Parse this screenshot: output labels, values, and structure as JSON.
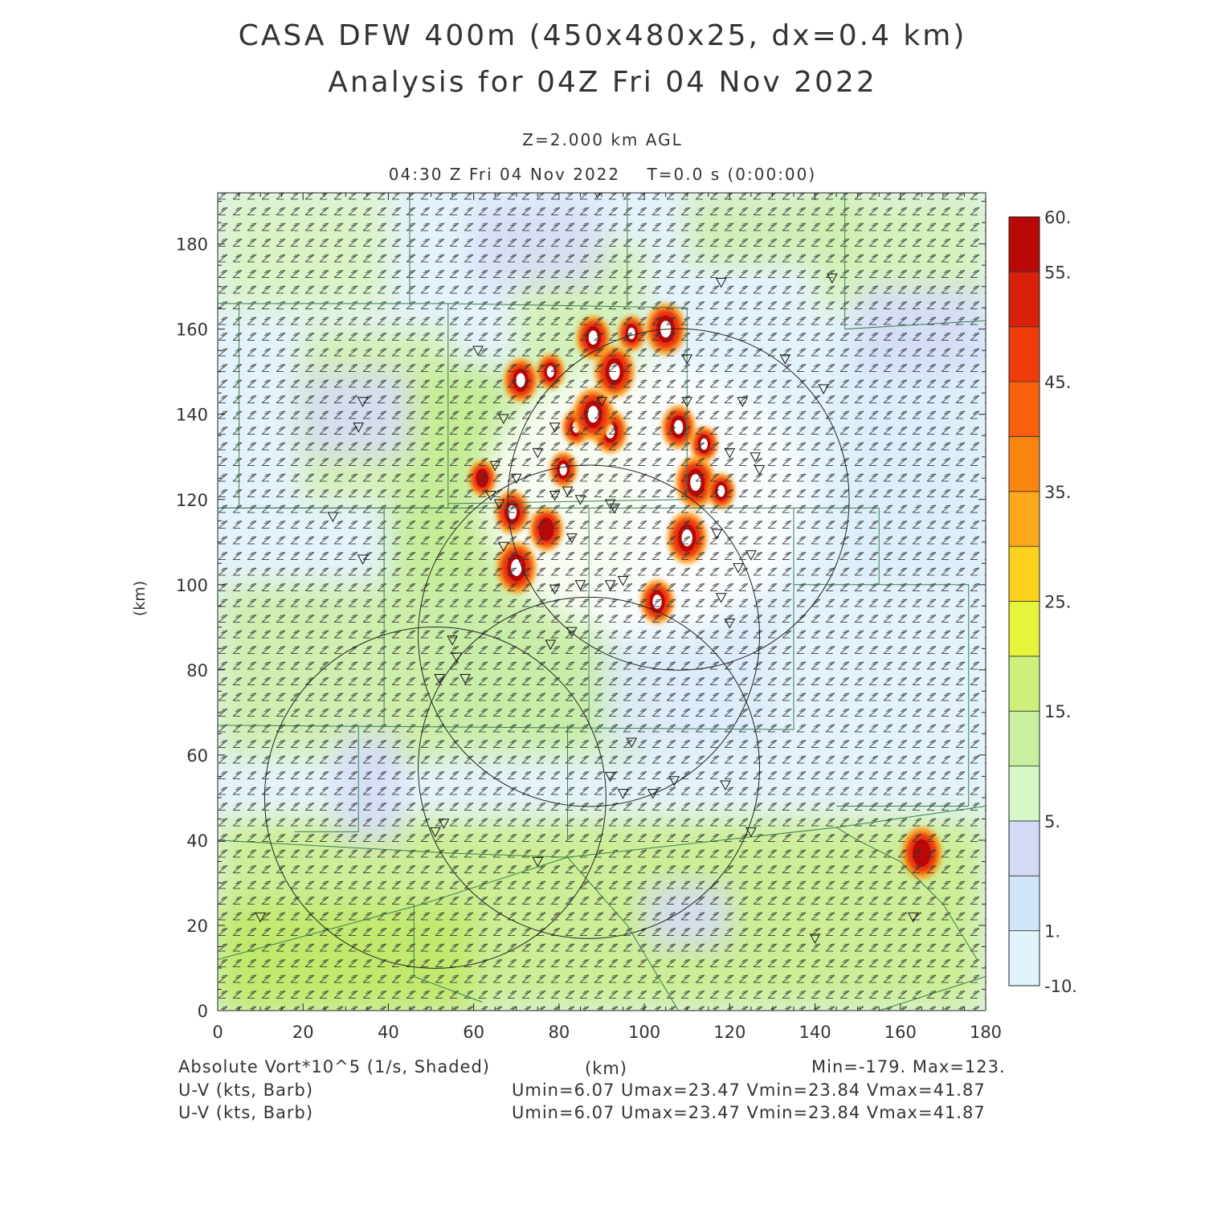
{
  "title": {
    "line1": "CASA DFW 400m (450x480x25, dx=0.4 km)",
    "line2": "Analysis for 04Z Fri 04 Nov 2022"
  },
  "level_label": "Z=2.000 km AGL",
  "time_label": "04:30 Z Fri 04 Nov 2022    T=0.0 s (0:00:00)",
  "footer": {
    "field_label": "Absolute Vort*10^5 (1/s, Shaded)",
    "xunit": "(km)",
    "minmax": "Min=-179. Max=123.",
    "barb_label_1": "U-V (kts, Barb)",
    "barb_label_2": "U-V (kts, Barb)",
    "uv_stats_1": "Umin=6.07 Umax=23.47 Vmin=23.84 Vmax=41.87",
    "uv_stats_2": "Umin=6.07 Umax=23.47 Vmin=23.84 Vmax=41.87"
  },
  "chart_data": {
    "type": "heatmap",
    "xlabel": "(km)",
    "ylabel": "(km)",
    "xlim": [
      0,
      180
    ],
    "ylim": [
      0,
      192
    ],
    "xticks": [
      0,
      20,
      40,
      60,
      80,
      100,
      120,
      140,
      160,
      180
    ],
    "yticks": [
      0,
      20,
      40,
      60,
      80,
      100,
      120,
      140,
      160,
      180
    ],
    "colorbar": {
      "tick_labels": [
        "60.",
        "55.",
        "45.",
        "35.",
        "25.",
        "15.",
        "5.",
        "1.",
        "-10."
      ],
      "tick_values": [
        60,
        55,
        45,
        35,
        25,
        15,
        5,
        1,
        -10
      ],
      "colors": [
        "#e0f4fc",
        "#cfe6f8",
        "#d2daf6",
        "#d6f8c6",
        "#c8f0a0",
        "#cdf07a",
        "#e4f53a",
        "#fcd21e",
        "#fca81a",
        "#fa8410",
        "#f8600c",
        "#f03c0a",
        "#d8200a",
        "#b80808"
      ]
    },
    "field": "Absolute Vort*10^5 (1/s)",
    "min": -179,
    "max": 123,
    "wind_barbs": {
      "units": "kts",
      "umin": 6.07,
      "umax": 23.47,
      "vmin": 23.84,
      "vmax": 41.87
    },
    "radar_range_rings": [
      {
        "center": [
          87,
          88
        ],
        "radius": 40
      },
      {
        "center": [
          87,
          57
        ],
        "radius": 40
      },
      {
        "center": [
          51,
          50
        ],
        "radius": 40
      },
      {
        "center": [
          108,
          120
        ],
        "radius": 40
      }
    ],
    "vorticity_maxima": [
      {
        "x": 97,
        "y": 159
      },
      {
        "x": 88,
        "y": 158
      },
      {
        "x": 105,
        "y": 160
      },
      {
        "x": 78,
        "y": 150
      },
      {
        "x": 71,
        "y": 148
      },
      {
        "x": 93,
        "y": 150
      },
      {
        "x": 84,
        "y": 137
      },
      {
        "x": 92,
        "y": 136
      },
      {
        "x": 88,
        "y": 140
      },
      {
        "x": 114,
        "y": 133
      },
      {
        "x": 108,
        "y": 137
      },
      {
        "x": 112,
        "y": 124
      },
      {
        "x": 118,
        "y": 122
      },
      {
        "x": 69,
        "y": 117
      },
      {
        "x": 70,
        "y": 104
      },
      {
        "x": 81,
        "y": 127
      },
      {
        "x": 103,
        "y": 96
      },
      {
        "x": 110,
        "y": 111
      },
      {
        "x": 62,
        "y": 125
      },
      {
        "x": 77,
        "y": 113
      },
      {
        "x": 165,
        "y": 37
      }
    ]
  }
}
